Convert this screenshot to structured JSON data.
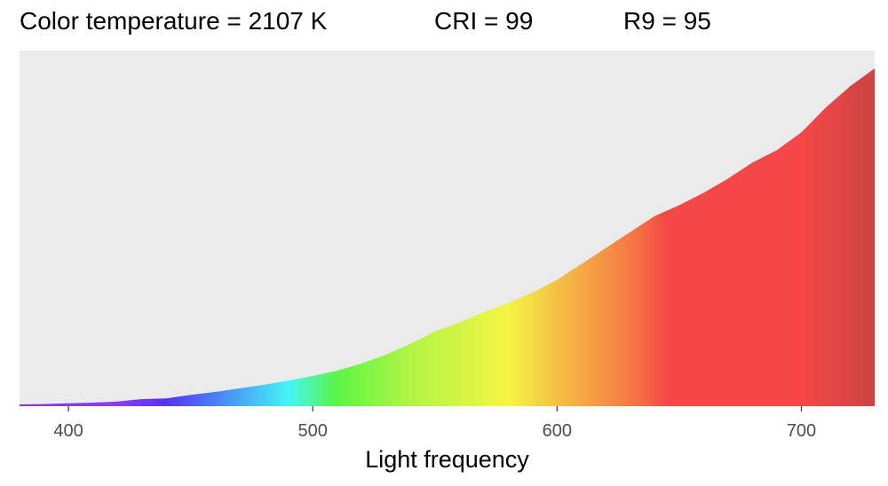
{
  "stats": {
    "color_temperature": "Color temperature = 2107 K",
    "cri": "CRI = 99",
    "r9": "R9 = 95"
  },
  "chart_data": {
    "type": "area",
    "title": "",
    "xlabel": "Light frequency",
    "ylabel": "",
    "xlim": [
      380,
      730
    ],
    "ylim": [
      0,
      1
    ],
    "grid": false,
    "panel_color": "#ebebeb",
    "x_ticks": [
      400,
      500,
      600,
      700
    ],
    "x_tick_labels": [
      "400",
      "500",
      "600",
      "700"
    ],
    "series": [
      {
        "x": [
          380,
          390,
          400,
          410,
          420,
          430,
          440,
          450,
          460,
          470,
          480,
          490,
          500,
          510,
          520,
          530,
          540,
          550,
          560,
          570,
          580,
          590,
          600,
          610,
          620,
          630,
          640,
          650,
          660,
          670,
          680,
          690,
          700,
          710,
          720,
          730
        ],
        "y": [
          0.005,
          0.006,
          0.008,
          0.01,
          0.013,
          0.02,
          0.022,
          0.032,
          0.04,
          0.05,
          0.06,
          0.072,
          0.085,
          0.1,
          0.12,
          0.145,
          0.175,
          0.21,
          0.235,
          0.265,
          0.29,
          0.32,
          0.355,
          0.4,
          0.445,
          0.49,
          0.535,
          0.565,
          0.6,
          0.64,
          0.685,
          0.72,
          0.77,
          0.84,
          0.9,
          0.95
        ]
      }
    ],
    "spectrum_colors": [
      {
        "nm": 380,
        "color": "#7f3fbf"
      },
      {
        "nm": 420,
        "color": "#8a3df0"
      },
      {
        "nm": 440,
        "color": "#5533ee"
      },
      {
        "nm": 460,
        "color": "#4a7ff5"
      },
      {
        "nm": 490,
        "color": "#44f5f5"
      },
      {
        "nm": 510,
        "color": "#5cf544"
      },
      {
        "nm": 540,
        "color": "#b2f544"
      },
      {
        "nm": 580,
        "color": "#f5f544"
      },
      {
        "nm": 600,
        "color": "#f5c044"
      },
      {
        "nm": 630,
        "color": "#f57a44"
      },
      {
        "nm": 645,
        "color": "#f54747"
      },
      {
        "nm": 700,
        "color": "#f54747"
      },
      {
        "nm": 730,
        "color": "#cc4444"
      }
    ]
  }
}
